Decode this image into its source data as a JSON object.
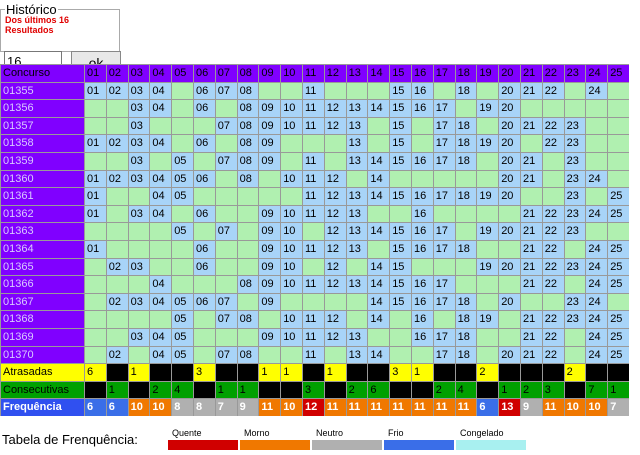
{
  "form": {
    "legend": "Histórico",
    "subtitle": "Dos últimos 16 Resultados",
    "input": "16",
    "button": "ok"
  },
  "table": {
    "header": [
      "Concurso",
      "01",
      "02",
      "03",
      "04",
      "05",
      "06",
      "07",
      "08",
      "09",
      "10",
      "11",
      "12",
      "13",
      "14",
      "15",
      "16",
      "17",
      "18",
      "19",
      "20",
      "21",
      "22",
      "23",
      "24",
      "25"
    ],
    "rows": [
      [
        "01355",
        "01",
        "02",
        "03",
        "04",
        null,
        "06",
        "07",
        "08",
        null,
        null,
        "11",
        null,
        null,
        null,
        "15",
        "16",
        null,
        "18",
        null,
        "20",
        "21",
        "22",
        null,
        "24",
        null
      ],
      [
        "01356",
        null,
        null,
        "03",
        "04",
        null,
        "06",
        null,
        "08",
        "09",
        "10",
        "11",
        "12",
        "13",
        "14",
        "15",
        "16",
        "17",
        null,
        "19",
        "20",
        null,
        null,
        null,
        null,
        null
      ],
      [
        "01357",
        null,
        null,
        "03",
        null,
        null,
        null,
        "07",
        "08",
        "09",
        "10",
        "11",
        "12",
        "13",
        null,
        "15",
        null,
        "17",
        "18",
        null,
        "20",
        "21",
        "22",
        "23",
        null,
        null
      ],
      [
        "01358",
        "01",
        "02",
        "03",
        "04",
        null,
        "06",
        null,
        "08",
        "09",
        null,
        null,
        null,
        "13",
        null,
        "15",
        null,
        "17",
        "18",
        "19",
        "20",
        null,
        "22",
        "23",
        null,
        null
      ],
      [
        "01359",
        null,
        null,
        "03",
        null,
        "05",
        null,
        "07",
        "08",
        "09",
        null,
        "11",
        null,
        "13",
        "14",
        "15",
        "16",
        "17",
        "18",
        null,
        "20",
        "21",
        null,
        "23",
        null,
        null
      ],
      [
        "01360",
        "01",
        "02",
        "03",
        "04",
        "05",
        "06",
        null,
        "08",
        null,
        "10",
        "11",
        "12",
        null,
        "14",
        null,
        null,
        null,
        null,
        null,
        "20",
        "21",
        null,
        "23",
        "24",
        null
      ],
      [
        "01361",
        "01",
        null,
        null,
        "04",
        "05",
        null,
        null,
        null,
        null,
        null,
        "11",
        "12",
        "13",
        "14",
        "15",
        "16",
        "17",
        "18",
        "19",
        "20",
        null,
        null,
        "23",
        null,
        "25"
      ],
      [
        "01362",
        "01",
        null,
        "03",
        "04",
        null,
        "06",
        null,
        null,
        "09",
        "10",
        "11",
        "12",
        "13",
        null,
        null,
        "16",
        null,
        null,
        null,
        null,
        "21",
        "22",
        "23",
        "24",
        "25"
      ],
      [
        "01363",
        null,
        null,
        null,
        null,
        "05",
        null,
        "07",
        null,
        "09",
        "10",
        null,
        "12",
        "13",
        "14",
        "15",
        "16",
        "17",
        null,
        "19",
        "20",
        "21",
        "22",
        "23",
        null,
        null
      ],
      [
        "01364",
        "01",
        null,
        null,
        null,
        null,
        "06",
        null,
        null,
        "09",
        "10",
        "11",
        "12",
        "13",
        null,
        "15",
        "16",
        "17",
        "18",
        null,
        null,
        "21",
        "22",
        null,
        "24",
        "25"
      ],
      [
        "01365",
        null,
        "02",
        "03",
        null,
        null,
        "06",
        null,
        null,
        "09",
        "10",
        null,
        "12",
        null,
        "14",
        "15",
        null,
        null,
        null,
        "19",
        "20",
        "21",
        "22",
        "23",
        "24",
        "25"
      ],
      [
        "01366",
        null,
        null,
        null,
        "04",
        null,
        null,
        null,
        "08",
        "09",
        "10",
        "11",
        "12",
        "13",
        "14",
        "15",
        "16",
        "17",
        null,
        null,
        null,
        "21",
        "22",
        null,
        "24",
        "25"
      ],
      [
        "01367",
        null,
        "02",
        "03",
        "04",
        "05",
        "06",
        "07",
        null,
        "09",
        null,
        null,
        null,
        null,
        "14",
        "15",
        "16",
        "17",
        "18",
        null,
        "20",
        null,
        null,
        "23",
        "24",
        null
      ],
      [
        "01368",
        null,
        null,
        null,
        null,
        "05",
        null,
        "07",
        "08",
        null,
        "10",
        "11",
        "12",
        null,
        "14",
        null,
        "16",
        null,
        "18",
        "19",
        null,
        "21",
        "22",
        "23",
        "24",
        "25"
      ],
      [
        "01369",
        null,
        null,
        "03",
        "04",
        "05",
        null,
        null,
        null,
        "09",
        "10",
        "11",
        "12",
        "13",
        null,
        null,
        "16",
        "17",
        "18",
        null,
        null,
        "21",
        "22",
        null,
        "24",
        "25"
      ],
      [
        "01370",
        null,
        "02",
        null,
        "04",
        "05",
        null,
        "07",
        "08",
        null,
        null,
        "11",
        null,
        "13",
        "14",
        null,
        null,
        "17",
        "18",
        null,
        "20",
        "21",
        "22",
        null,
        "24",
        "25"
      ]
    ],
    "atrasadas": [
      "Atrasadas",
      6,
      null,
      1,
      null,
      null,
      3,
      null,
      null,
      1,
      1,
      null,
      1,
      null,
      null,
      3,
      1,
      null,
      null,
      2,
      null,
      null,
      null,
      2,
      null,
      null
    ],
    "consecutivas": [
      "Consecutivas",
      null,
      1,
      null,
      2,
      4,
      null,
      1,
      1,
      null,
      null,
      3,
      null,
      2,
      6,
      null,
      null,
      2,
      4,
      null,
      1,
      2,
      3,
      null,
      7,
      1
    ],
    "frequencia": [
      "Frequência",
      6,
      6,
      10,
      10,
      8,
      8,
      7,
      9,
      11,
      10,
      12,
      11,
      11,
      11,
      11,
      11,
      11,
      11,
      6,
      13,
      9,
      11,
      10,
      10,
      7
    ],
    "frequencia_colors": [
      "#3a6ee8",
      "#3a6ee8",
      "#f07800",
      "#f07800",
      "#b0b0b0",
      "#b0b0b0",
      "#b0b0b0",
      "#b0b0b0",
      "#f07800",
      "#f07800",
      "#d00000",
      "#f07800",
      "#f07800",
      "#f07800",
      "#f07800",
      "#f07800",
      "#f07800",
      "#f07800",
      "#3a6ee8",
      "#d00000",
      "#b0b0b0",
      "#f07800",
      "#f07800",
      "#f07800",
      "#b0b0b0"
    ]
  },
  "legend": {
    "title": "Tabela de Frenquência:",
    "items": [
      {
        "label": "Quente",
        "color": "#d00000"
      },
      {
        "label": "Morno",
        "color": "#f07800"
      },
      {
        "label": "Neutro",
        "color": "#b0b0b0"
      },
      {
        "label": "Frio",
        "color": "#3a6ee8"
      },
      {
        "label": "Congelado",
        "color": "#a8f0f0"
      }
    ]
  }
}
